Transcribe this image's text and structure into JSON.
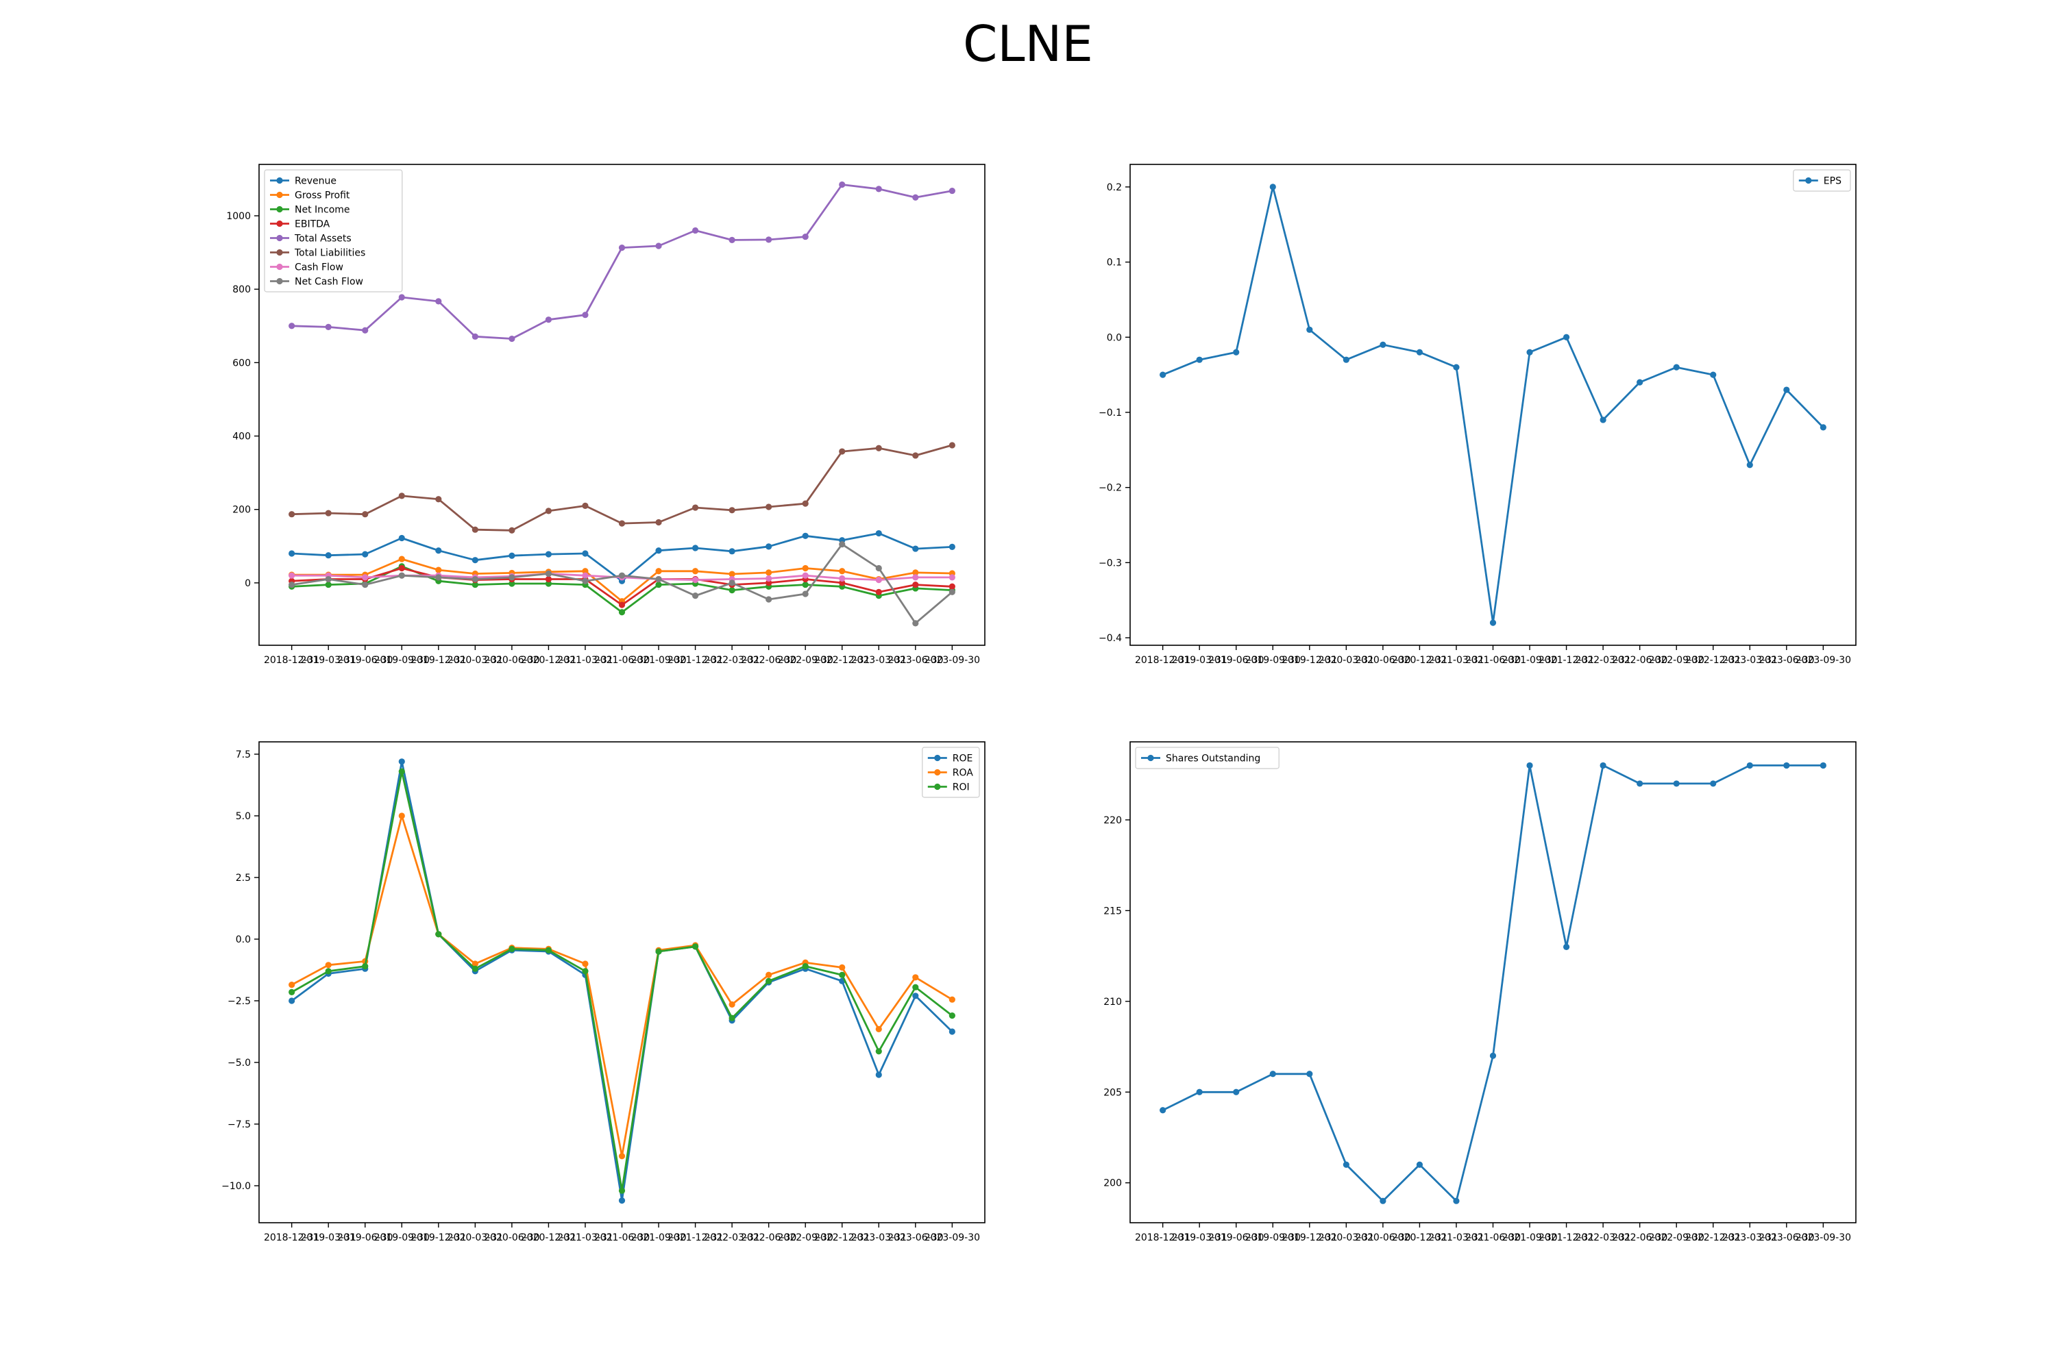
{
  "title": "CLNE",
  "colors": {
    "blue": "#1f77b4",
    "orange": "#ff7f0e",
    "green": "#2ca02c",
    "red": "#d62728",
    "purple": "#9467bd",
    "brown": "#8c564b",
    "pink": "#e377c2",
    "gray": "#7f7f7f"
  },
  "chart_data": [
    {
      "type": "line",
      "title": "",
      "x": [
        "2018-12-31",
        "2019-03-31",
        "2019-06-30",
        "2019-09-30",
        "2019-12-31",
        "2020-03-31",
        "2020-06-30",
        "2020-12-31",
        "2021-03-31",
        "2021-06-30",
        "2021-09-30",
        "2021-12-31",
        "2022-03-31",
        "2022-06-30",
        "2022-09-30",
        "2022-12-31",
        "2023-03-31",
        "2023-06-30",
        "2023-09-30"
      ],
      "ylim": [
        -170,
        1140
      ],
      "yticks": [
        0,
        200,
        400,
        600,
        800,
        1000
      ],
      "grid": false,
      "legend": "top-left",
      "series": [
        {
          "name": "Revenue",
          "color": "blue",
          "values": [
            80,
            75,
            78,
            122,
            88,
            62,
            74,
            78,
            80,
            5,
            88,
            95,
            86,
            99,
            128,
            116,
            135,
            93,
            98
          ]
        },
        {
          "name": "Gross Profit",
          "color": "orange",
          "values": [
            22,
            22,
            22,
            65,
            35,
            25,
            27,
            30,
            32,
            -50,
            32,
            32,
            24,
            28,
            40,
            32,
            10,
            28,
            26
          ]
        },
        {
          "name": "Net Income",
          "color": "green",
          "values": [
            -10,
            -5,
            -2,
            45,
            5,
            -5,
            -2,
            -2,
            -5,
            -80,
            -5,
            -2,
            -20,
            -10,
            -5,
            -10,
            -35,
            -15,
            -20
          ]
        },
        {
          "name": "EBITDA",
          "color": "red",
          "values": [
            5,
            10,
            10,
            40,
            15,
            8,
            10,
            10,
            10,
            -60,
            10,
            10,
            -5,
            0,
            10,
            0,
            -25,
            -5,
            -10
          ]
        },
        {
          "name": "Total Assets",
          "color": "purple",
          "values": [
            700,
            697,
            688,
            778,
            767,
            671,
            665,
            717,
            730,
            913,
            918,
            960,
            934,
            935,
            943,
            1085,
            1073,
            1050,
            1068
          ]
        },
        {
          "name": "Total Liabilities",
          "color": "brown",
          "values": [
            187,
            190,
            187,
            237,
            228,
            145,
            143,
            196,
            210,
            162,
            165,
            205,
            198,
            207,
            216,
            358,
            367,
            347,
            375
          ]
        },
        {
          "name": "Cash Flow",
          "color": "pink",
          "values": [
            20,
            20,
            15,
            20,
            20,
            15,
            18,
            25,
            20,
            15,
            10,
            8,
            10,
            12,
            20,
            12,
            8,
            15,
            15
          ]
        },
        {
          "name": "Net Cash Flow",
          "color": "gray",
          "values": [
            -5,
            10,
            -5,
            20,
            15,
            10,
            15,
            25,
            5,
            20,
            10,
            -35,
            0,
            -45,
            -30,
            105,
            40,
            -110,
            -25
          ]
        }
      ]
    },
    {
      "type": "line",
      "title": "",
      "x": [
        "2018-12-31",
        "2019-03-31",
        "2019-06-30",
        "2019-09-30",
        "2019-12-31",
        "2020-03-31",
        "2020-06-30",
        "2020-12-31",
        "2021-03-31",
        "2021-06-30",
        "2021-09-30",
        "2021-12-31",
        "2022-03-31",
        "2022-06-30",
        "2022-09-30",
        "2022-12-31",
        "2023-03-31",
        "2023-06-30",
        "2023-09-30"
      ],
      "ylim": [
        -0.41,
        0.23
      ],
      "yticks": [
        -0.4,
        -0.3,
        -0.2,
        -0.1,
        0.0,
        0.1,
        0.2
      ],
      "ytick_labels": [
        "−0.4",
        "−0.3",
        "−0.2",
        "−0.1",
        "0.0",
        "0.1",
        "0.2"
      ],
      "grid": false,
      "legend": "top-right",
      "series": [
        {
          "name": "EPS",
          "color": "blue",
          "values": [
            -0.05,
            -0.03,
            -0.02,
            0.2,
            0.01,
            -0.03,
            -0.01,
            -0.02,
            -0.04,
            -0.38,
            -0.02,
            0.0,
            -0.11,
            -0.06,
            -0.04,
            -0.05,
            -0.17,
            -0.07,
            -0.12
          ]
        }
      ]
    },
    {
      "type": "line",
      "title": "",
      "x": [
        "2018-12-31",
        "2019-03-31",
        "2019-06-30",
        "2019-09-30",
        "2019-12-31",
        "2020-03-31",
        "2020-06-30",
        "2020-12-31",
        "2021-03-31",
        "2021-06-30",
        "2021-09-30",
        "2021-12-31",
        "2022-03-31",
        "2022-06-30",
        "2022-09-30",
        "2022-12-31",
        "2023-03-31",
        "2023-06-30",
        "2023-09-30"
      ],
      "ylim": [
        -11.5,
        8.0
      ],
      "yticks": [
        -10.0,
        -7.5,
        -5.0,
        -2.5,
        0.0,
        2.5,
        5.0,
        7.5
      ],
      "ytick_labels": [
        "−10.0",
        "−7.5",
        "−5.0",
        "−2.5",
        "0.0",
        "2.5",
        "5.0",
        "7.5"
      ],
      "grid": false,
      "legend": "top-right",
      "series": [
        {
          "name": "ROE",
          "color": "blue",
          "values": [
            -2.5,
            -1.4,
            -1.2,
            7.2,
            0.2,
            -1.3,
            -0.45,
            -0.5,
            -1.45,
            -10.6,
            -0.5,
            -0.3,
            -3.3,
            -1.75,
            -1.2,
            -1.7,
            -5.5,
            -2.3,
            -3.75
          ]
        },
        {
          "name": "ROA",
          "color": "orange",
          "values": [
            -1.85,
            -1.05,
            -0.9,
            5.0,
            0.2,
            -1.0,
            -0.35,
            -0.4,
            -1.0,
            -8.8,
            -0.45,
            -0.25,
            -2.65,
            -1.45,
            -0.95,
            -1.15,
            -3.65,
            -1.55,
            -2.45
          ]
        },
        {
          "name": "ROI",
          "color": "green",
          "values": [
            -2.15,
            -1.3,
            -1.1,
            6.8,
            0.2,
            -1.2,
            -0.4,
            -0.45,
            -1.3,
            -10.2,
            -0.5,
            -0.3,
            -3.2,
            -1.7,
            -1.1,
            -1.45,
            -4.55,
            -1.95,
            -3.1
          ]
        }
      ]
    },
    {
      "type": "line",
      "title": "",
      "x": [
        "2018-12-31",
        "2019-03-31",
        "2019-06-30",
        "2019-09-30",
        "2019-12-31",
        "2020-03-31",
        "2020-06-30",
        "2020-12-31",
        "2021-03-31",
        "2021-06-30",
        "2021-09-30",
        "2021-12-31",
        "2022-03-31",
        "2022-06-30",
        "2022-09-30",
        "2022-12-31",
        "2023-03-31",
        "2023-06-30",
        "2023-09-30"
      ],
      "ylim": [
        197.8,
        224.3
      ],
      "yticks": [
        200,
        205,
        210,
        215,
        220
      ],
      "grid": false,
      "legend": "top-left",
      "series": [
        {
          "name": "Shares Outstanding",
          "color": "blue",
          "values": [
            204,
            205,
            205,
            206,
            206,
            201,
            199,
            201,
            199,
            207,
            223,
            213,
            223,
            222,
            222,
            222,
            223,
            223,
            223
          ]
        }
      ]
    }
  ]
}
